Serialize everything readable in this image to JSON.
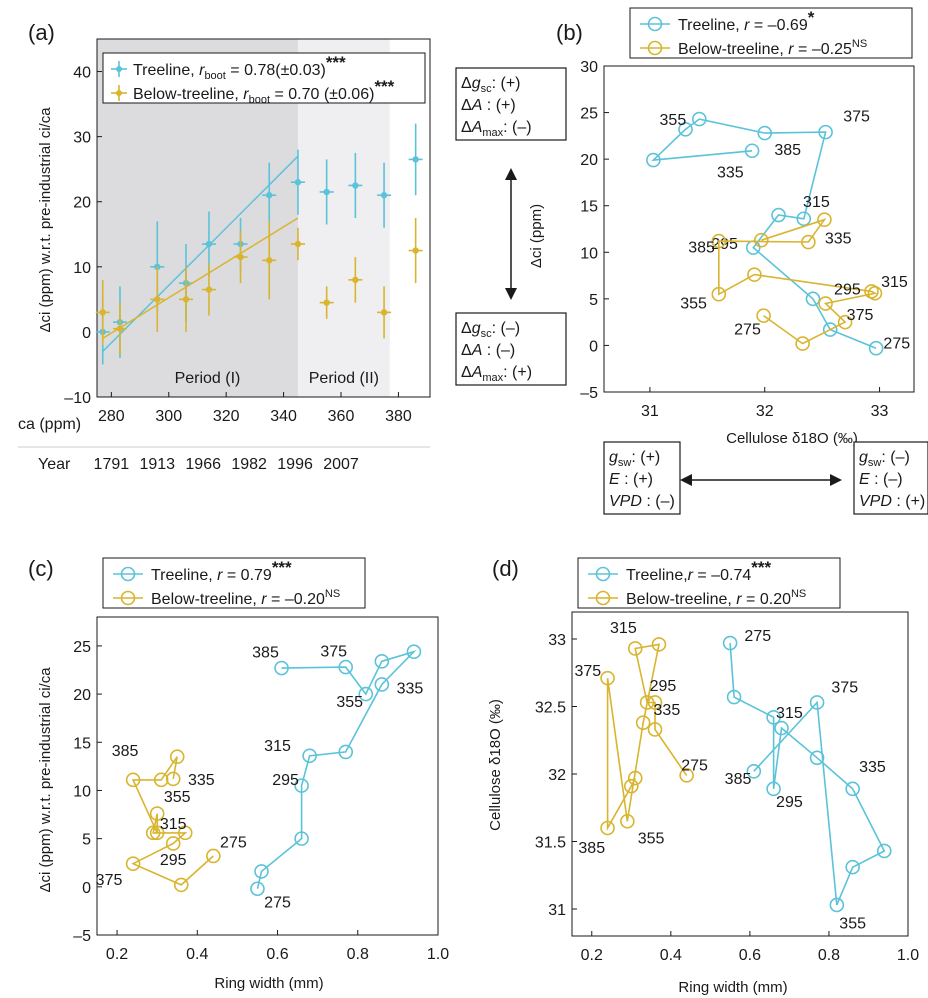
{
  "colors": {
    "treeline": "#5bc3d9",
    "below": "#d9b42f",
    "period1": "#dcdcdf",
    "period2": "#efeff1",
    "frame": "#1a1a1a"
  },
  "chart_data": [
    {
      "panel": "(a)",
      "type": "scatter",
      "ylabel": "Δci (ppm) w.r.t. pre-industrial ci/ca",
      "ylim": [
        -10,
        45
      ],
      "xlim": [
        275,
        391
      ],
      "xticks_ca": [
        280,
        300,
        320,
        340,
        360,
        380
      ],
      "ca_label": "ca (ppm)",
      "xticks_year": [
        [
          "1791",
          280
        ],
        [
          "1913",
          296
        ],
        [
          "1966",
          312
        ],
        [
          "1982",
          328
        ],
        [
          "1996",
          344
        ],
        [
          "2007",
          360
        ]
      ],
      "year_label": "Year",
      "periods": [
        {
          "label": "Period (I)",
          "from": 275,
          "to": 345
        },
        {
          "label": "Period (II)",
          "from": 345,
          "to": 377
        }
      ],
      "series": [
        {
          "name": "Treeline",
          "legend_pre": "Treeline, ",
          "legend_r": "rboot",
          "legend_val": " = 0.78(±0.03)",
          "stars": "***",
          "color": "treeline",
          "points": [
            [
              277,
              0,
              5
            ],
            [
              283,
              1.5,
              5.5
            ],
            [
              296,
              10,
              7
            ],
            [
              306,
              7.5,
              6
            ],
            [
              314,
              13.5,
              5
            ],
            [
              325,
              13.5,
              4
            ],
            [
              335,
              21,
              5
            ],
            [
              345,
              23,
              5
            ],
            [
              355,
              21.5,
              5
            ],
            [
              365,
              22.5,
              5
            ],
            [
              375,
              21,
              5
            ],
            [
              386,
              26.5,
              5.5
            ]
          ],
          "fit": [
            [
              277,
              -3
            ],
            [
              345,
              27
            ]
          ]
        },
        {
          "name": "Below-treeline",
          "legend_pre": "Below-treeline, ",
          "legend_r": "rboot",
          "legend_val": " = 0.70 (±0.06)",
          "stars": "***",
          "color": "below",
          "points": [
            [
              277,
              3,
              5
            ],
            [
              283,
              0.5,
              4
            ],
            [
              296,
              5,
              5
            ],
            [
              306,
              5,
              5
            ],
            [
              314,
              6.5,
              4
            ],
            [
              325,
              11.5,
              4
            ],
            [
              335,
              11,
              6
            ],
            [
              345,
              13.5,
              2.5
            ],
            [
              355,
              4.5,
              2.5
            ],
            [
              365,
              8,
              3.5
            ],
            [
              375,
              3,
              4
            ],
            [
              386,
              12.5,
              5
            ]
          ],
          "fit": [
            [
              277,
              -1
            ],
            [
              345,
              17.5
            ]
          ]
        }
      ]
    },
    {
      "panel": "(b)",
      "type": "line",
      "xlabel": "Cellulose δ18O (‰)",
      "ylabel": "Δci (ppm)",
      "xlim": [
        30.6,
        33.3
      ],
      "ylim": [
        -5,
        30
      ],
      "series": [
        {
          "name": "Treeline",
          "legend_pre": "Treeline, ",
          "legend_r": "r",
          "legend_val": " = –0.69",
          "stars": "*",
          "color": "treeline",
          "points": [
            [
              32.97,
              -0.3
            ],
            [
              32.57,
              1.7
            ],
            [
              32.42,
              5
            ],
            [
              31.9,
              10.5
            ],
            [
              32.12,
              14
            ],
            [
              32.34,
              13.6
            ],
            [
              32.53,
              22.9
            ],
            [
              32.0,
              22.8
            ],
            [
              31.43,
              24.3
            ],
            [
              31.31,
              23.2
            ],
            [
              31.03,
              19.9
            ],
            [
              31.89,
              20.9
            ]
          ],
          "labels": [
            [
              "275",
              33.15,
              0.3
            ],
            [
              "295",
              31.65,
              11
            ],
            [
              "315",
              32.45,
              15.5
            ],
            [
              "335",
              31.7,
              18.7
            ],
            [
              "355",
              31.2,
              24.3
            ],
            [
              "375",
              32.8,
              24.7
            ],
            [
              "385",
              32.2,
              21.1
            ]
          ]
        },
        {
          "name": "Below-treeline",
          "legend_pre": "Below-treeline, ",
          "legend_r": "r",
          "legend_val": " = –0.25",
          "stars": "NS",
          "color": "below",
          "points": [
            [
              31.99,
              3.2
            ],
            [
              32.33,
              0.2
            ],
            [
              32.7,
              2.5
            ],
            [
              32.53,
              4.5
            ],
            [
              32.96,
              5.6
            ],
            [
              32.93,
              5.8
            ],
            [
              31.91,
              7.6
            ],
            [
              31.6,
              5.5
            ],
            [
              31.6,
              11.2
            ],
            [
              32.38,
              11.1
            ],
            [
              32.52,
              13.5
            ],
            [
              31.97,
              11.3
            ]
          ],
          "labels": [
            [
              "275",
              31.85,
              1.8
            ],
            [
              "295",
              32.72,
              6.1
            ],
            [
              "315",
              33.13,
              6.9
            ],
            [
              "335",
              32.64,
              11.6
            ],
            [
              "355",
              31.38,
              4.6
            ],
            [
              "375",
              32.83,
              3.4
            ],
            [
              "385",
              31.45,
              10.6
            ]
          ]
        }
      ],
      "top_box": [
        [
          "Δgsc",
          "(+)"
        ],
        [
          "ΔA",
          "(+)"
        ],
        [
          "ΔAmax",
          "(–)"
        ]
      ],
      "bottom_box": [
        [
          "Δgsc",
          "(–)"
        ],
        [
          "ΔA",
          "(–)"
        ],
        [
          "ΔAmax",
          "(+)"
        ]
      ],
      "left_box": [
        [
          "gsw",
          "(+)"
        ],
        [
          "E",
          "(+)"
        ],
        [
          "VPD",
          "(–)"
        ]
      ],
      "right_box": [
        [
          "gsw",
          "(–)"
        ],
        [
          "E",
          "(–)"
        ],
        [
          "VPD",
          "(+)"
        ]
      ]
    },
    {
      "panel": "(c)",
      "type": "line",
      "xlabel": "Ring width (mm)",
      "ylabel": "Δci (ppm) w.r.t. pre-industrial ci/ca",
      "xlim": [
        0.15,
        1.0
      ],
      "ylim": [
        -5,
        28
      ],
      "series": [
        {
          "name": "Treeline",
          "legend_pre": "Treeline, ",
          "legend_r": "r",
          "legend_val": " = 0.79",
          "stars": "***",
          "color": "treeline",
          "points": [
            [
              0.55,
              -0.2
            ],
            [
              0.56,
              1.6
            ],
            [
              0.66,
              5.0
            ],
            [
              0.66,
              10.5
            ],
            [
              0.68,
              13.6
            ],
            [
              0.77,
              14.0
            ],
            [
              0.86,
              21.0
            ],
            [
              0.94,
              24.4
            ],
            [
              0.86,
              23.4
            ],
            [
              0.82,
              20.0
            ],
            [
              0.77,
              22.8
            ],
            [
              0.61,
              22.7
            ]
          ],
          "labels": [
            [
              "275",
              0.6,
              -1.5
            ],
            [
              "295",
              0.62,
              11.2
            ],
            [
              "315",
              0.6,
              14.7
            ],
            [
              "335",
              0.93,
              20.7
            ],
            [
              "355",
              0.78,
              19.3
            ],
            [
              "375",
              0.74,
              24.5
            ],
            [
              "385",
              0.57,
              24.4
            ]
          ]
        },
        {
          "name": "Below-treeline",
          "legend_pre": "Below-treeline, ",
          "legend_r": "r",
          "legend_val": " = –0.20",
          "stars": "NS",
          "color": "below",
          "points": [
            [
              0.44,
              3.2
            ],
            [
              0.36,
              0.2
            ],
            [
              0.24,
              2.4
            ],
            [
              0.34,
              4.5
            ],
            [
              0.37,
              5.6
            ],
            [
              0.29,
              5.6
            ],
            [
              0.3,
              7.6
            ],
            [
              0.3,
              5.6
            ],
            [
              0.24,
              11.1
            ],
            [
              0.31,
              11.1
            ],
            [
              0.35,
              13.5
            ],
            [
              0.34,
              11.2
            ]
          ],
          "labels": [
            [
              "275",
              0.49,
              4.7
            ],
            [
              "295",
              0.34,
              2.9
            ],
            [
              "315",
              0.34,
              6.6
            ],
            [
              "335",
              0.41,
              11.2
            ],
            [
              "355",
              0.35,
              9.4
            ],
            [
              "375",
              0.18,
              0.8
            ],
            [
              "385",
              0.22,
              14.2
            ]
          ]
        }
      ]
    },
    {
      "panel": "(d)",
      "type": "line",
      "xlabel": "Ring width (mm)",
      "ylabel": "Cellulose δ18O (‰)",
      "xlim": [
        0.15,
        1.0
      ],
      "ylim": [
        30.8,
        33.2
      ],
      "series": [
        {
          "name": "Treeline",
          "legend_pre": "Treeline,",
          "legend_r": "r",
          "legend_val": " = –0.74",
          "stars": "***",
          "color": "treeline",
          "points": [
            [
              0.55,
              32.97
            ],
            [
              0.56,
              32.57
            ],
            [
              0.66,
              32.42
            ],
            [
              0.66,
              31.89
            ],
            [
              0.68,
              32.34
            ],
            [
              0.77,
              32.12
            ],
            [
              0.86,
              31.89
            ],
            [
              0.94,
              31.43
            ],
            [
              0.86,
              31.31
            ],
            [
              0.82,
              31.03
            ],
            [
              0.77,
              32.53
            ],
            [
              0.61,
              32.02
            ]
          ],
          "labels": [
            [
              "275",
              0.62,
              33.03
            ],
            [
              "295",
              0.7,
              31.8
            ],
            [
              "315",
              0.7,
              32.46
            ],
            [
              "335",
              0.91,
              32.06
            ],
            [
              "355",
              0.86,
              30.9
            ],
            [
              "375",
              0.84,
              32.65
            ],
            [
              "385",
              0.57,
              31.97
            ]
          ]
        },
        {
          "name": "Below-treeline",
          "legend_pre": "Below-treeline, ",
          "legend_r": "r",
          "legend_val": " = 0.20",
          "stars": "NS",
          "color": "below",
          "points": [
            [
              0.44,
              31.99
            ],
            [
              0.36,
              32.33
            ],
            [
              0.36,
              32.53
            ],
            [
              0.34,
              32.53
            ],
            [
              0.31,
              32.93
            ],
            [
              0.37,
              32.96
            ],
            [
              0.33,
              32.38
            ],
            [
              0.29,
              31.65
            ],
            [
              0.24,
              32.71
            ],
            [
              0.24,
              31.6
            ],
            [
              0.3,
              31.91
            ],
            [
              0.31,
              31.97
            ]
          ],
          "labels": [
            [
              "275",
              0.46,
              32.07
            ],
            [
              "295",
              0.38,
              32.66
            ],
            [
              "315",
              0.28,
              33.09
            ],
            [
              "335",
              0.39,
              32.48
            ],
            [
              "355",
              0.35,
              31.53
            ],
            [
              "375",
              0.19,
              32.77
            ],
            [
              "385",
              0.2,
              31.46
            ]
          ]
        }
      ]
    }
  ]
}
